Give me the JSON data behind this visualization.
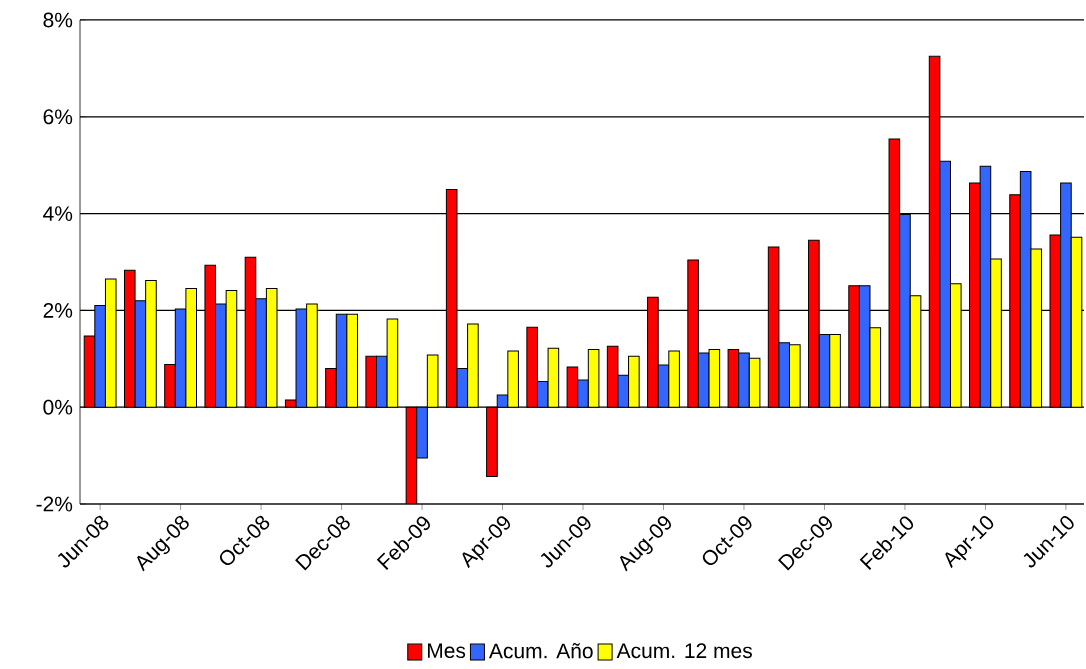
{
  "chart_data": {
    "type": "bar",
    "categories": [
      "Jun-08",
      null,
      "Aug-08",
      null,
      "Oct-08",
      null,
      "Dec-08",
      null,
      "Feb-09",
      null,
      "Apr-09",
      null,
      "Jun-09",
      null,
      "Aug-09",
      null,
      "Oct-09",
      null,
      "Dec-09",
      null,
      "Feb-10",
      null,
      "Apr-10",
      null,
      "Jun-10"
    ],
    "series": [
      {
        "name": "Mes",
        "color": "#ff0000",
        "values": [
          1.47,
          2.83,
          0.88,
          2.93,
          3.1,
          0.15,
          0.8,
          1.05,
          -2.0,
          4.5,
          -1.43,
          1.65,
          0.83,
          1.26,
          2.27,
          3.04,
          1.19,
          3.31,
          3.45,
          2.51,
          5.54,
          7.25,
          4.63,
          4.39,
          3.56
        ]
      },
      {
        "name": "Acum. Año",
        "color": "#3366ff",
        "values": [
          2.1,
          2.2,
          2.03,
          2.13,
          2.24,
          2.03,
          1.92,
          1.05,
          -1.05,
          0.8,
          0.25,
          0.53,
          0.56,
          0.66,
          0.87,
          1.12,
          1.12,
          1.33,
          1.5,
          2.51,
          3.98,
          5.08,
          4.98,
          4.87,
          4.63
        ]
      },
      {
        "name": "Acum. 12 mes",
        "color": "#ffff00",
        "values": [
          2.65,
          2.62,
          2.45,
          2.41,
          2.45,
          2.13,
          1.92,
          1.82,
          1.08,
          1.72,
          1.16,
          1.22,
          1.19,
          1.05,
          1.16,
          1.19,
          1.01,
          1.29,
          1.5,
          1.64,
          2.3,
          2.55,
          3.06,
          3.27,
          3.51
        ]
      }
    ],
    "ylim": [
      -2,
      8
    ],
    "yticks": [
      {
        "value": -2,
        "label": "-2%"
      },
      {
        "value": 0,
        "label": "0%"
      },
      {
        "value": 2,
        "label": "2%"
      },
      {
        "value": 4,
        "label": "4%"
      },
      {
        "value": 6,
        "label": "6%"
      },
      {
        "value": 8,
        "label": "8%"
      }
    ],
    "grid": "y",
    "legend": "bottom"
  }
}
